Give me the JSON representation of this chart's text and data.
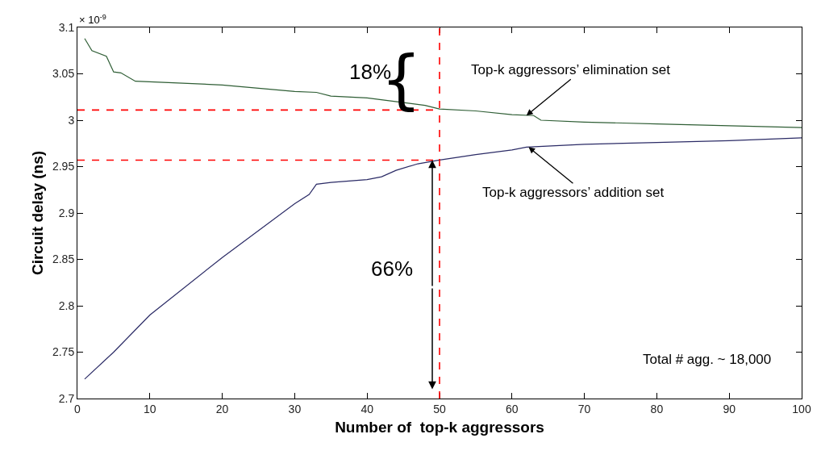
{
  "chart_data": {
    "type": "line",
    "xlabel": "Number of  top-k aggressors",
    "ylabel": "Circuit delay (ns)",
    "xlim": [
      0,
      100
    ],
    "xticks": [
      0,
      10,
      20,
      30,
      40,
      50,
      60,
      70,
      80,
      90,
      100
    ],
    "ylim": [
      2.7,
      3.1
    ],
    "yticks": [
      2.7,
      2.75,
      2.8,
      2.85,
      2.9,
      2.95,
      3,
      3.05,
      3.1
    ],
    "marker": "none",
    "line_style": "solid",
    "series": [
      {
        "color": "#2f5e35",
        "x": [
          1,
          2,
          4,
          5,
          6,
          8,
          20,
          30,
          33,
          35,
          40,
          45,
          48,
          50,
          55,
          60,
          63,
          64,
          70,
          80,
          90,
          100
        ],
        "values": [
          3.088,
          3.075,
          3.069,
          3.052,
          3.051,
          3.042,
          3.038,
          3.031,
          3.03,
          3.026,
          3.024,
          3.019,
          3.016,
          3.012,
          3.01,
          3.006,
          3.005,
          3.0,
          2.998,
          2.996,
          2.994,
          2.992
        ]
      },
      {
        "color": "#2b2b66",
        "x": [
          1,
          5,
          10,
          20,
          30,
          32,
          33,
          35,
          40,
          42,
          44,
          47,
          50,
          55,
          60,
          62,
          70,
          80,
          90,
          100
        ],
        "values": [
          2.721,
          2.75,
          2.79,
          2.852,
          2.91,
          2.92,
          2.931,
          2.933,
          2.936,
          2.939,
          2.946,
          2.953,
          2.957,
          2.963,
          2.968,
          2.971,
          2.974,
          2.976,
          2.978,
          2.981
        ]
      }
    ],
    "ref_lines": [
      {
        "axis": "x",
        "value": 50,
        "color": "#ff0000",
        "line_style": "dashed"
      },
      {
        "axis": "y",
        "value": 3.011,
        "color": "#ff0000",
        "line_style": "dashed"
      },
      {
        "axis": "y",
        "value": 2.957,
        "color": "#ff0000",
        "line_style": "dashed"
      }
    ],
    "annotations": [
      "× 10$^{-9}$",
      "18%",
      "{",
      {
        "text": "Top-k aggressors’ elimination set",
        "x": 62,
        "y": 3.005
      },
      {
        "text": "Top-k aggressors’ addition set",
        "x": 62.3,
        "y": 2.971
      },
      {
        "text": "66%",
        "x": 49,
        "y": 2.957
      },
      "Total # agg. ~ 18,000"
    ]
  }
}
